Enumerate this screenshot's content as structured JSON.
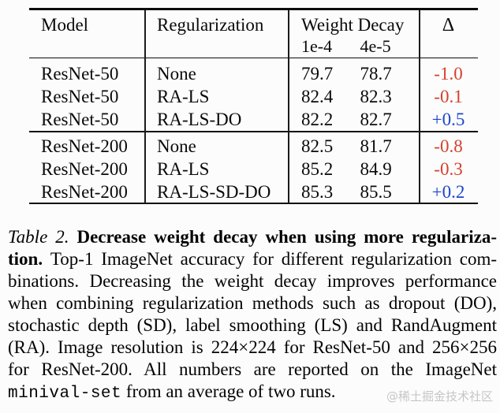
{
  "table": {
    "header": {
      "model": "Model",
      "regularization": "Regularization",
      "weight_decay": "Weight Decay",
      "wd_sub": [
        "1e-4",
        "4e-5"
      ],
      "delta": "Δ"
    },
    "groups": [
      {
        "rows": [
          {
            "model": "ResNet-50",
            "reg": "None",
            "wd1": "79.7",
            "wd2": "78.7",
            "delta": "-1.0",
            "trend": "negative"
          },
          {
            "model": "ResNet-50",
            "reg": "RA-LS",
            "wd1": "82.4",
            "wd2": "82.3",
            "delta": "-0.1",
            "trend": "negative"
          },
          {
            "model": "ResNet-50",
            "reg": "RA-LS-DO",
            "wd1": "82.2",
            "wd2": "82.7",
            "delta": "+0.5",
            "trend": "positive"
          }
        ]
      },
      {
        "rows": [
          {
            "model": "ResNet-200",
            "reg": "None",
            "wd1": "82.5",
            "wd2": "81.7",
            "delta": "-0.8",
            "trend": "negative"
          },
          {
            "model": "ResNet-200",
            "reg": "RA-LS",
            "wd1": "85.2",
            "wd2": "84.9",
            "delta": "-0.3",
            "trend": "negative"
          },
          {
            "model": "ResNet-200",
            "reg": "RA-LS-SD-DO",
            "wd1": "85.3",
            "wd2": "85.5",
            "delta": "+0.2",
            "trend": "positive"
          }
        ]
      }
    ]
  },
  "caption": {
    "label": "Table 2.",
    "lines": [
      {
        "segments": [
          "Table 2. ",
          "Decrease weight decay when using more regulariza-"
        ]
      },
      {
        "segments": [
          "tion. ",
          "Top-1 ImageNet accuracy for different regularization com-"
        ]
      },
      {
        "segments": [
          "binations. Decreasing the weight decay improves performance"
        ]
      },
      {
        "segments": [
          "when combining regularization methods such as dropout (DO),"
        ]
      },
      {
        "segments": [
          "stochastic depth (SD), label smoothing (LS) and RandAugment"
        ]
      },
      {
        "segments": [
          "(RA). Image resolution is 224×224 for ResNet-50 and 256×256"
        ]
      },
      {
        "segments": [
          "for ResNet-200. All numbers are reported on the ImageNet"
        ]
      },
      {
        "segments": [
          "minival-set",
          " from an average of two runs."
        ]
      }
    ]
  },
  "watermark": {
    "text": "@稀土掘金技术社区"
  },
  "colors": {
    "delta_negative": "#d5402e",
    "delta_positive": "#1c45cb",
    "text": "#0a0a0a",
    "rule": "#0c0c0c",
    "watermark": "#c6c6c6",
    "background": "#fcfcfc"
  }
}
